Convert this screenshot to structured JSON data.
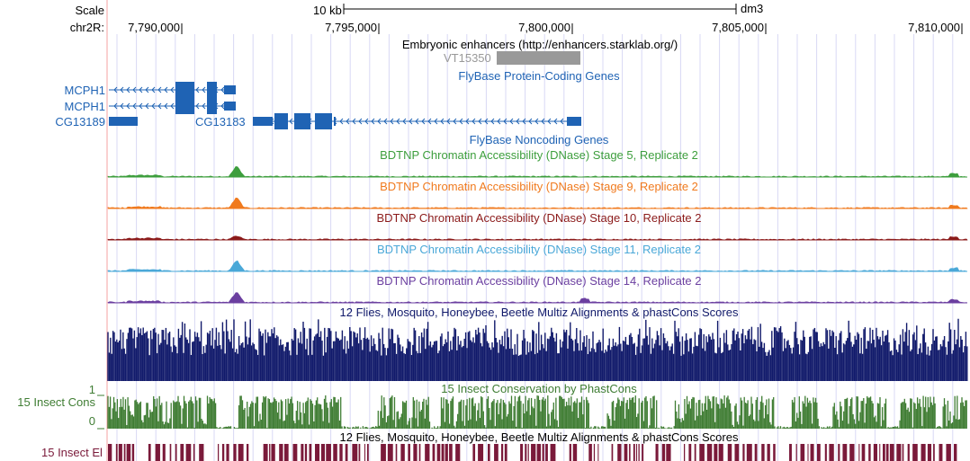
{
  "ruler": {
    "scale_label": "Scale",
    "chrom_label": "chr2R:",
    "scale_bar_label": "10 kb",
    "assembly": "dm3",
    "positions": [
      "7,790,000",
      "7,795,000",
      "7,800,000",
      "7,805,000",
      "7,810,000"
    ]
  },
  "tracks": {
    "enhancers": {
      "title": "Embryonic enhancers (http://enhancers.starklab.org/)",
      "feature": "VT15350",
      "feature_color": "#999999"
    },
    "flybase_coding": {
      "title": "FlyBase Protein-Coding Genes",
      "color": "#1f63b4",
      "genes": [
        {
          "label": "MCPH1",
          "strand": "-"
        },
        {
          "label": "MCPH1",
          "strand": "-"
        },
        {
          "label": "CG13189",
          "strand": "+"
        },
        {
          "label": "CG13183",
          "strand": "-"
        }
      ]
    },
    "flybase_noncoding": {
      "title": "FlyBase Noncoding Genes"
    },
    "dnase": [
      {
        "title": "BDTNP Chromatin Accessibility (DNase) Stage 5, Replicate 2",
        "color": "#3d9e3d"
      },
      {
        "title": "BDTNP Chromatin Accessibility (DNase) Stage 9, Replicate 2",
        "color": "#f07a1e"
      },
      {
        "title": "BDTNP Chromatin Accessibility (DNase) Stage 10, Replicate 2",
        "color": "#8b1a1a"
      },
      {
        "title": "BDTNP Chromatin Accessibility (DNase) Stage 11, Replicate 2",
        "color": "#4aa8d8"
      },
      {
        "title": "BDTNP Chromatin Accessibility (DNase) Stage 14, Replicate 2",
        "color": "#6b3fa0"
      }
    ],
    "multiz": {
      "title": "12 Flies, Mosquito, Honeybee, Beetle Multiz Alignments & phastCons Scores",
      "color": "#111a6b"
    },
    "cons": {
      "title": "15 Insect Conservation by PhastCons",
      "side_label": "15 Insect Cons",
      "y_max_label": "1",
      "y_min_label": "0",
      "color": "#3f7d33"
    },
    "elements": {
      "title": "12 Flies, Mosquito, Honeybee, Beetle Multiz Alignments & phastCons Scores",
      "side_label": "15 Insect El",
      "color": "#7a1a3a"
    }
  },
  "colors": {
    "grid": "#d8d8f4",
    "left_margin_line": "#f4a0a0"
  }
}
